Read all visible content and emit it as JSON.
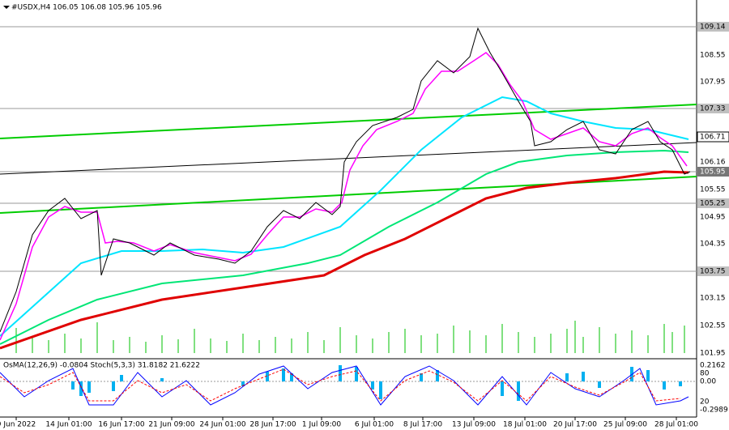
{
  "header": {
    "title": "#USDX,H4  106.05 106.08 105.96 105.96"
  },
  "price_axis": [
    "109.14",
    "108.55",
    "107.95",
    "107.33",
    "106.71",
    "106.16",
    "105.95",
    "105.55",
    "105.25",
    "104.95",
    "104.35",
    "103.75",
    "103.15",
    "102.55",
    "101.95"
  ],
  "indicator": {
    "title": "OsMA(12,26,9) -0.0804  Stoch(5,3,3) 31.8182 21.6222",
    "axis": [
      "0.2162",
      "80",
      "0.00",
      "20",
      "-0.2989"
    ]
  },
  "time_axis": [
    "9 Jun 2022",
    "14 Jun 01:00",
    "16 Jun 17:00",
    "21 Jun 09:00",
    "24 Jun 01:00",
    "28 Jun 17:00",
    "1 Jul 09:00",
    "6 Jul 01:00",
    "8 Jul 17:00",
    "13 Jul 09:00",
    "18 Jul 01:00",
    "20 Jul 17:00",
    "25 Jul 09:00",
    "28 Jul 01:00"
  ]
}
